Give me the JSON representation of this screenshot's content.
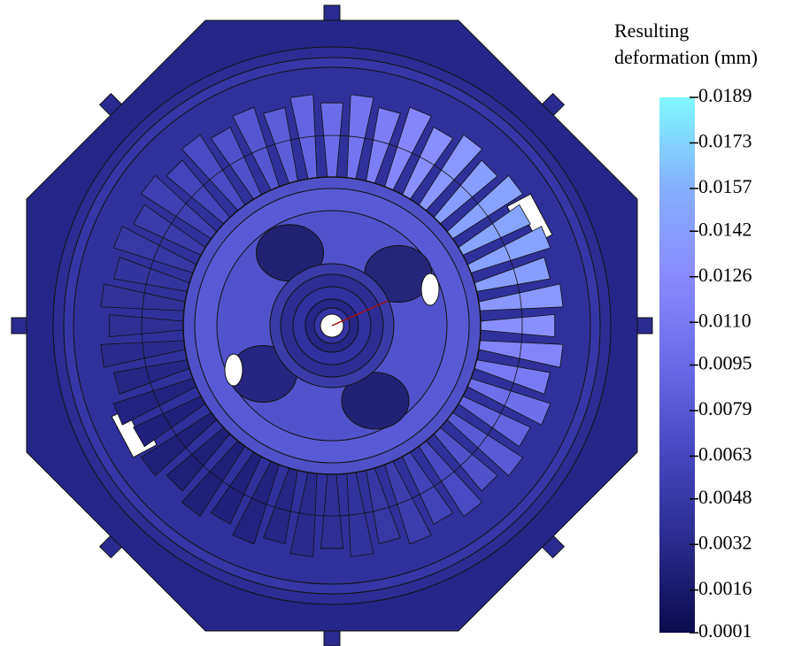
{
  "chart_data": {
    "type": "colorbar",
    "title": "Resulting deformation (mm)",
    "zlim": [
      0.0001,
      0.0189
    ],
    "zticks": [
      0.0189,
      0.0173,
      0.0157,
      0.0142,
      0.0126,
      {
        "value": 0.011,
        "label": "0.0110"
      },
      0.0095,
      0.0079,
      0.0063,
      0.0048,
      0.0032,
      0.0016,
      0.0001
    ],
    "colormap": [
      "#0b0b4e",
      "#2a2a8c",
      "#4646c0",
      "#6a6ae8",
      "#8a8aff",
      "#86b0ff",
      "#7ff8ff"
    ]
  }
}
